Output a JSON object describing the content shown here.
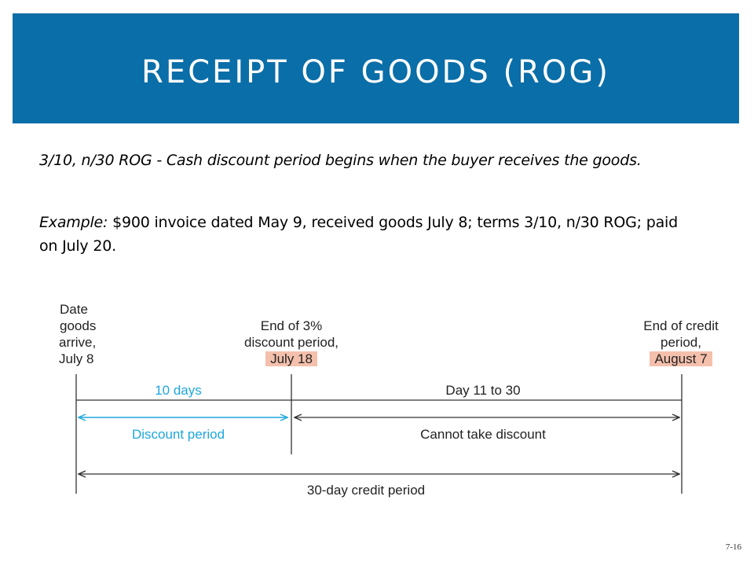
{
  "title": "RECEIPT OF GOODS (ROG)",
  "intro": "3/10, n/30 ROG - Cash discount period begins when the buyer receives the goods.",
  "example": {
    "label": "Example:",
    "text": " $900 invoice dated May 9, received goods July 8; terms 3/10, n/30 ROG; paid on July 20."
  },
  "timeline": {
    "start": {
      "line1": "Date",
      "line2": "goods",
      "line3": "arrive,",
      "line4": "July 8"
    },
    "discount_end": {
      "line1": "End of 3%",
      "line2": "discount period,",
      "date": "July 18"
    },
    "credit_end": {
      "line1": "End of credit",
      "line2": "period,",
      "date": "August 7"
    },
    "segment1_top": "10 days",
    "segment1_bottom": "Discount period",
    "segment2_top": "Day 11 to 30",
    "segment2_bottom": "Cannot take discount",
    "full_bottom": "30-day credit period"
  },
  "colors": {
    "header": "#0a6ea8",
    "highlight": "#f4c0ac",
    "discount_blue": "#1ea7de"
  },
  "slide_number": "7-16"
}
